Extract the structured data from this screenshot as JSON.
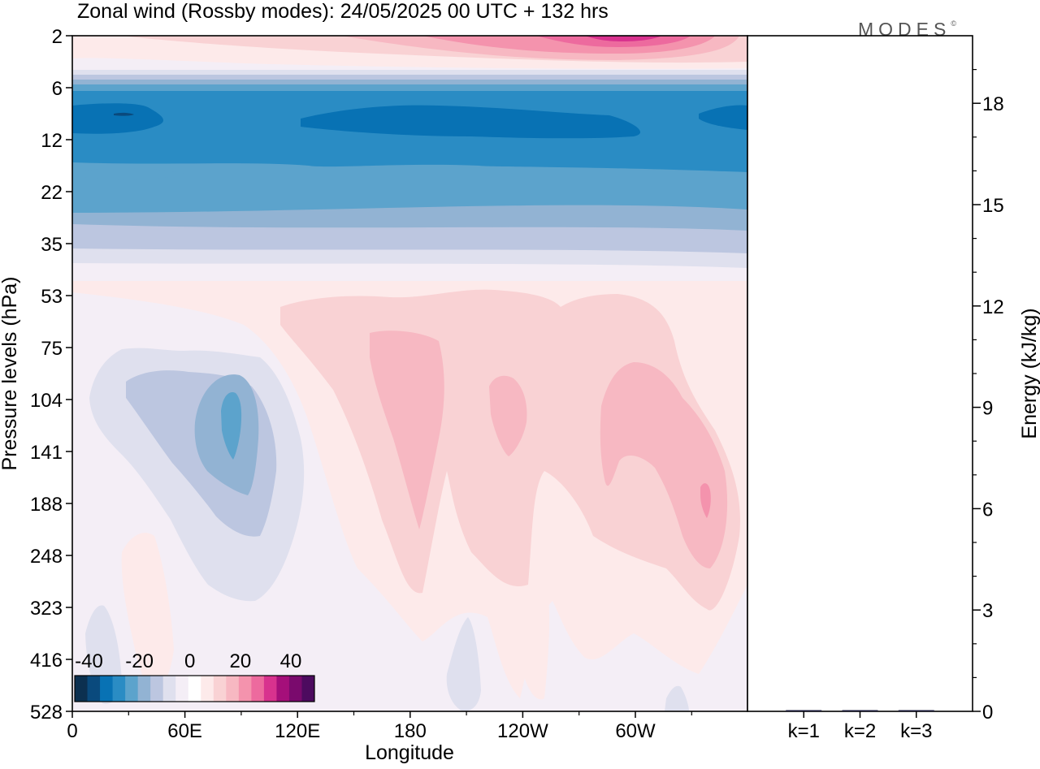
{
  "title": "Zonal wind (Rossby modes):  24/05/2025  00 UTC  + 132 hrs",
  "brand": "MODES",
  "brand_mark": "©",
  "chart_data": [
    {
      "type": "heatmap",
      "title": "Zonal wind (Rossby modes):  24/05/2025  00 UTC  + 132 hrs",
      "xlabel": "Longitude",
      "ylabel": "Pressure levels (hPa)",
      "x_ticks": [
        "0",
        "60E",
        "120E",
        "180",
        "120W",
        "60W"
      ],
      "y_ticks": [
        "2",
        "6",
        "12",
        "22",
        "35",
        "53",
        "75",
        "104",
        "141",
        "188",
        "248",
        "323",
        "416",
        "528"
      ],
      "colorbar": {
        "tick_labels": [
          "-40",
          "-20",
          "0",
          "20",
          "40"
        ],
        "levels": [
          -45,
          -40,
          -35,
          -30,
          -25,
          -20,
          -15,
          -10,
          -5,
          0,
          5,
          10,
          15,
          20,
          25,
          30,
          35,
          40,
          45
        ],
        "colors": [
          "#0c3050",
          "#0a4a7d",
          "#0872b4",
          "#2a8cc4",
          "#5ca3cc",
          "#92b3d3",
          "#bcc6e0",
          "#dfe0ee",
          "#f4eef6",
          "#ffffff",
          "#fdeaea",
          "#f9d2d4",
          "#f7b8c2",
          "#f493ad",
          "#ed6a9e",
          "#d8328e",
          "#a50f7a",
          "#7a0a6d",
          "#4d0b5f"
        ]
      },
      "series_description": "Zonal-mean structure: easterlies up to about -30 m/s near 8-20 hPa, westerlies up to about 25 m/s near 2 hPa at 60W-120W, weak westerly cores 10-20 m/s between 180 and 30W at 75-250 hPa, weak easterly core about -20 m/s near 85E at 130 hPa."
    },
    {
      "type": "bar",
      "ylabel": "Energy (kJ/kg)",
      "categories": [
        "k=1",
        "k=2",
        "k=3"
      ],
      "values": [
        0.02,
        0.01,
        0.01
      ],
      "ylim": [
        0,
        20
      ],
      "y_ticks": [
        "0",
        "3",
        "6",
        "9",
        "12",
        "15",
        "18"
      ]
    }
  ]
}
